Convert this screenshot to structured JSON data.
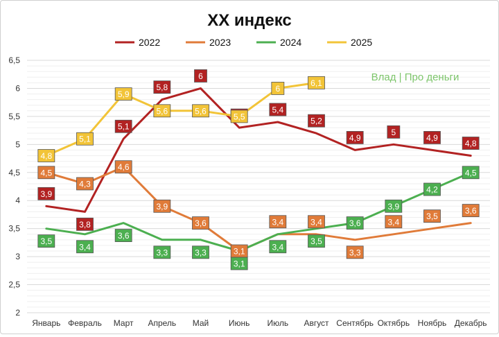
{
  "chart_data": {
    "type": "line",
    "title": "XX индекс",
    "watermark": "Влад | Про деньги",
    "watermark_color": "#7dc56b",
    "categories": [
      "Январь",
      "Февраль",
      "Март",
      "Апрель",
      "Май",
      "Июнь",
      "Июль",
      "Август",
      "Сентябрь",
      "Октябрь",
      "Ноябрь",
      "Декабрь"
    ],
    "ylim": [
      2,
      6.5
    ],
    "yticks": [
      "2",
      "2,5",
      "3",
      "3,5",
      "4",
      "4,5",
      "5",
      "5,5",
      "6",
      "6,5"
    ],
    "grid": true,
    "legend": "top",
    "series": [
      {
        "name": "2022",
        "color": "#b22222",
        "values": [
          3.9,
          3.8,
          5.1,
          5.8,
          6.0,
          5.3,
          5.4,
          5.2,
          4.9,
          5.0,
          4.9,
          4.8
        ],
        "labels": [
          "3,9",
          "3,8",
          "5,1",
          "5,8",
          "6",
          "5,3",
          "5,4",
          "5,2",
          "4,9",
          "5",
          "4,9",
          "4,8"
        ],
        "label_pos": [
          "above",
          "below",
          "above",
          "above",
          "above",
          "above",
          "above",
          "above",
          "above",
          "above",
          "above",
          "above"
        ]
      },
      {
        "name": "2023",
        "color": "#e07b39",
        "values": [
          4.5,
          4.3,
          4.6,
          3.9,
          3.6,
          3.1,
          3.4,
          3.4,
          3.3,
          3.4,
          3.5,
          3.6
        ],
        "labels": [
          "4,5",
          "4,3",
          "4,6",
          "3,9",
          "3,6",
          "3,1",
          "3,4",
          "3,4",
          "3,3",
          "3,4",
          "3,5",
          "3,6"
        ],
        "label_pos": [
          "center",
          "center",
          "center",
          "center",
          "center",
          "center",
          "above",
          "above",
          "below",
          "above",
          "above",
          "above"
        ]
      },
      {
        "name": "2024",
        "color": "#4caf50",
        "values": [
          3.5,
          3.4,
          3.6,
          3.3,
          3.3,
          3.1,
          3.4,
          3.5,
          3.6,
          3.9,
          4.2,
          4.5
        ],
        "labels": [
          "3,5",
          "3,4",
          "3,6",
          "3,3",
          "3,3",
          "3,1",
          "3,4",
          "3,5",
          "3,6",
          "3,9",
          "4,2",
          "4,5"
        ],
        "label_pos": [
          "below",
          "below",
          "below",
          "below",
          "below",
          "below",
          "below",
          "below",
          "center",
          "center",
          "center",
          "center"
        ]
      },
      {
        "name": "2025",
        "color": "#f2c438",
        "values": [
          4.8,
          5.1,
          5.9,
          5.6,
          5.6,
          5.5,
          6.0,
          6.1,
          null,
          null,
          null,
          null
        ],
        "labels": [
          "4,8",
          "5,1",
          "5,9",
          "5,6",
          "5,6",
          "5,5",
          "6",
          "6,1",
          null,
          null,
          null,
          null
        ],
        "label_pos": [
          "center",
          "center",
          "center",
          "center",
          "center",
          "center",
          "center",
          "center",
          "center",
          "center",
          "center",
          "center"
        ]
      }
    ]
  }
}
